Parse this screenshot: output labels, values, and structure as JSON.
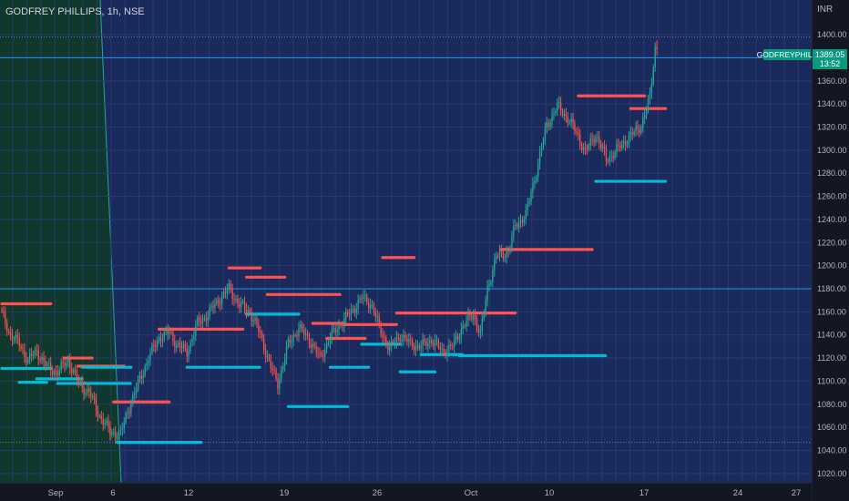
{
  "header": {
    "symbol": "GODFREY PHILLIPS, 1h, NSE",
    "currency": "INR"
  },
  "price_badge": {
    "name": "GODFREYPHILP",
    "price": "1389.05",
    "countdown": "13:52"
  },
  "colors": {
    "background": "#131722",
    "plot_background": "#1b2a5c",
    "shaded_region": "#10382d",
    "bull": "#26a69a",
    "bear": "#ef5350",
    "resistance": "#ff5252",
    "support": "#00bcd4",
    "hline": "#2196f3",
    "badge": "#089981"
  },
  "chart_data": {
    "type": "candlestick",
    "title": "GODFREY PHILLIPS, 1h, NSE",
    "ylabel": "INR",
    "ylim": [
      1012,
      1430
    ],
    "y_ticks": [
      1400,
      1380,
      1360,
      1340,
      1320,
      1300,
      1280,
      1260,
      1240,
      1220,
      1200,
      1180,
      1160,
      1140,
      1120,
      1100,
      1080,
      1060,
      1040,
      1020
    ],
    "x_ticks": [
      "Sep",
      "6",
      "12",
      "19",
      "26",
      "Oct",
      "10",
      "17",
      "24",
      "27"
    ],
    "anchor_points": [
      [
        0,
        1158
      ],
      [
        5,
        1140
      ],
      [
        10,
        1132
      ],
      [
        15,
        1118
      ],
      [
        20,
        1126
      ],
      [
        26,
        1112
      ],
      [
        32,
        1108
      ],
      [
        38,
        1118
      ],
      [
        44,
        1098
      ],
      [
        50,
        1090
      ],
      [
        56,
        1070
      ],
      [
        62,
        1056
      ],
      [
        68,
        1054
      ],
      [
        72,
        1074
      ],
      [
        78,
        1098
      ],
      [
        84,
        1120
      ],
      [
        90,
        1138
      ],
      [
        96,
        1142
      ],
      [
        100,
        1132
      ],
      [
        106,
        1125
      ],
      [
        112,
        1150
      ],
      [
        118,
        1158
      ],
      [
        124,
        1170
      ],
      [
        130,
        1180
      ],
      [
        136,
        1166
      ],
      [
        142,
        1160
      ],
      [
        148,
        1140
      ],
      [
        154,
        1112
      ],
      [
        158,
        1098
      ],
      [
        164,
        1132
      ],
      [
        170,
        1146
      ],
      [
        176,
        1136
      ],
      [
        182,
        1120
      ],
      [
        188,
        1138
      ],
      [
        194,
        1150
      ],
      [
        200,
        1160
      ],
      [
        206,
        1172
      ],
      [
        212,
        1166
      ],
      [
        216,
        1146
      ],
      [
        222,
        1128
      ],
      [
        228,
        1140
      ],
      [
        234,
        1132
      ],
      [
        240,
        1130
      ],
      [
        246,
        1136
      ],
      [
        252,
        1126
      ],
      [
        258,
        1130
      ],
      [
        264,
        1148
      ],
      [
        270,
        1158
      ],
      [
        274,
        1140
      ],
      [
        278,
        1180
      ],
      [
        283,
        1208
      ],
      [
        290,
        1212
      ],
      [
        294,
        1235
      ],
      [
        300,
        1244
      ],
      [
        306,
        1282
      ],
      [
        312,
        1322
      ],
      [
        318,
        1338
      ],
      [
        324,
        1328
      ],
      [
        330,
        1312
      ],
      [
        334,
        1298
      ],
      [
        340,
        1314
      ],
      [
        346,
        1292
      ],
      [
        352,
        1300
      ],
      [
        358,
        1310
      ],
      [
        362,
        1315
      ],
      [
        366,
        1322
      ],
      [
        371,
        1345
      ],
      [
        374,
        1389
      ]
    ],
    "total_bars": 376,
    "resistance_levels": [
      {
        "price": 1167,
        "from_bar": 0,
        "to_bar": 28
      },
      {
        "price": 1120,
        "from_bar": 36,
        "to_bar": 52
      },
      {
        "price": 1113,
        "from_bar": 44,
        "to_bar": 70
      },
      {
        "price": 1082,
        "from_bar": 64,
        "to_bar": 96
      },
      {
        "price": 1145,
        "from_bar": 90,
        "to_bar": 138
      },
      {
        "price": 1198,
        "from_bar": 130,
        "to_bar": 148
      },
      {
        "price": 1190,
        "from_bar": 140,
        "to_bar": 162
      },
      {
        "price": 1175,
        "from_bar": 152,
        "to_bar": 194
      },
      {
        "price": 1150,
        "from_bar": 178,
        "to_bar": 196
      },
      {
        "price": 1137,
        "from_bar": 186,
        "to_bar": 208
      },
      {
        "price": 1149,
        "from_bar": 196,
        "to_bar": 226
      },
      {
        "price": 1207,
        "from_bar": 218,
        "to_bar": 236
      },
      {
        "price": 1159,
        "from_bar": 226,
        "to_bar": 294
      },
      {
        "price": 1214,
        "from_bar": 286,
        "to_bar": 338
      },
      {
        "price": 1347,
        "from_bar": 330,
        "to_bar": 368
      },
      {
        "price": 1336,
        "from_bar": 360,
        "to_bar": 380
      }
    ],
    "support_levels": [
      {
        "price": 1111,
        "from_bar": 0,
        "to_bar": 28
      },
      {
        "price": 1099,
        "from_bar": 10,
        "to_bar": 26
      },
      {
        "price": 1102,
        "from_bar": 20,
        "to_bar": 46
      },
      {
        "price": 1098,
        "from_bar": 32,
        "to_bar": 74
      },
      {
        "price": 1112,
        "from_bar": 46,
        "to_bar": 74
      },
      {
        "price": 1047,
        "from_bar": 66,
        "to_bar": 114
      },
      {
        "price": 1112,
        "from_bar": 106,
        "to_bar": 148
      },
      {
        "price": 1158,
        "from_bar": 140,
        "to_bar": 170
      },
      {
        "price": 1078,
        "from_bar": 164,
        "to_bar": 198
      },
      {
        "price": 1112,
        "from_bar": 188,
        "to_bar": 210
      },
      {
        "price": 1132,
        "from_bar": 206,
        "to_bar": 228
      },
      {
        "price": 1108,
        "from_bar": 228,
        "to_bar": 248
      },
      {
        "price": 1123,
        "from_bar": 240,
        "to_bar": 264
      },
      {
        "price": 1122,
        "from_bar": 262,
        "to_bar": 346
      },
      {
        "price": 1273,
        "from_bar": 340,
        "to_bar": 380
      }
    ],
    "horizontal_lines": [
      1380,
      1180
    ],
    "dotted_lines": [
      1398,
      1047
    ],
    "shaded_region_bars": [
      0,
      60
    ],
    "grid": true
  }
}
